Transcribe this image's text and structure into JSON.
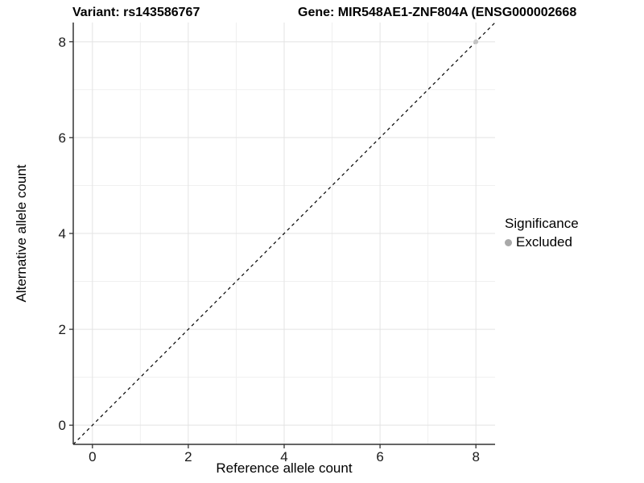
{
  "chart_data": {
    "type": "scatter",
    "title_variant": "Variant: rs143586767",
    "title_gene": "Gene: MIR548AE1-ZNF804A (ENSG000002668",
    "xlabel": "Reference allele count",
    "ylabel": "Alternative allele count",
    "xlim": [
      -0.4,
      8.4
    ],
    "ylim": [
      -0.4,
      8.4
    ],
    "xticks": [
      0,
      2,
      4,
      6,
      8
    ],
    "yticks": [
      0,
      2,
      4,
      6,
      8
    ],
    "xticks_minor": [
      1,
      3,
      5,
      7
    ],
    "yticks_minor": [
      1,
      3,
      5,
      7
    ],
    "grid": true,
    "identity_line": {
      "style": "dashed",
      "from": [
        -0.4,
        -0.4
      ],
      "to": [
        8.4,
        8.4
      ],
      "color": "#000000"
    },
    "points": [
      {
        "x": 8,
        "y": 8,
        "significance": "Excluded",
        "color": "#c3c3c3",
        "radius": 3
      }
    ],
    "legend": {
      "title": "Significance",
      "position": "right",
      "items": [
        {
          "label": "Excluded",
          "color": "#a9a9a9",
          "marker": "circle"
        }
      ]
    },
    "colors": {
      "background": "#ffffff",
      "grid_major": "#e3e3e3",
      "grid_minor": "#f0f0f0",
      "axis_line": "#333333",
      "tick_mark": "#333333",
      "tick_label": "#1a1a1a"
    }
  }
}
